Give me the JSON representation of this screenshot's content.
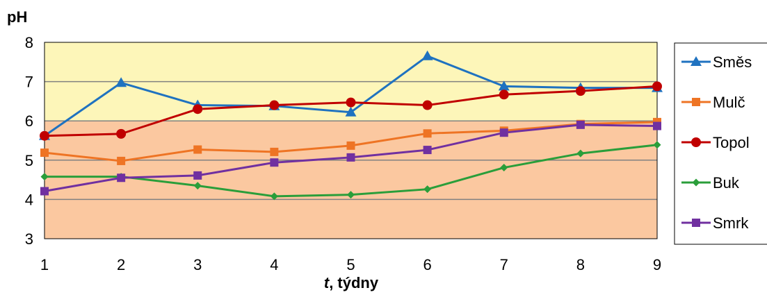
{
  "chart_data": {
    "type": "line",
    "ylabel": "pH",
    "xlabel": {
      "italic_part": "t",
      "rest": ", týdny"
    },
    "x": [
      1,
      2,
      3,
      4,
      5,
      6,
      7,
      8,
      9
    ],
    "xlim": [
      1,
      9
    ],
    "ylim": [
      3,
      8
    ],
    "yticks": [
      3,
      4,
      5,
      6,
      7,
      8
    ],
    "grid": true,
    "legend_position": "right",
    "background_bands": [
      {
        "from": 3,
        "to": 6,
        "color": "#fbc8a0"
      },
      {
        "from": 6,
        "to": 8,
        "color": "#fdf6b9"
      }
    ],
    "series": [
      {
        "name": "Směs",
        "color": "#1f72c0",
        "marker": "triangle",
        "values": [
          5.62,
          6.97,
          6.4,
          6.38,
          6.22,
          7.65,
          6.88,
          6.84,
          6.84
        ]
      },
      {
        "name": "Mulč",
        "color": "#ee7424",
        "marker": "square",
        "values": [
          5.19,
          4.98,
          5.27,
          5.21,
          5.37,
          5.68,
          5.75,
          5.92,
          5.97
        ]
      },
      {
        "name": "Topol",
        "color": "#c00000",
        "marker": "circle",
        "values": [
          5.62,
          5.67,
          6.3,
          6.4,
          6.47,
          6.4,
          6.67,
          6.76,
          6.88
        ]
      },
      {
        "name": "Buk",
        "color": "#2a9e3a",
        "marker": "diamond",
        "values": [
          4.58,
          4.58,
          4.35,
          4.08,
          4.12,
          4.26,
          4.81,
          5.17,
          5.39
        ]
      },
      {
        "name": "Smrk",
        "color": "#7030a0",
        "marker": "square",
        "values": [
          4.21,
          4.55,
          4.61,
          4.94,
          5.07,
          5.26,
          5.7,
          5.9,
          5.87
        ]
      }
    ]
  }
}
